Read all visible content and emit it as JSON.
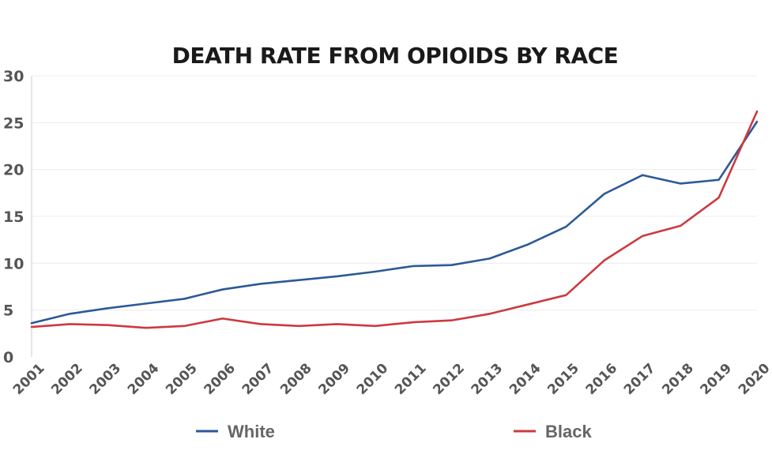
{
  "chart_data": {
    "type": "line",
    "title": "DEATH RATE FROM OPIOIDS BY RACE",
    "xlabel": "",
    "ylabel": "",
    "ylim": [
      0,
      30
    ],
    "yticks": [
      0,
      5,
      10,
      15,
      20,
      25,
      30
    ],
    "grid": true,
    "legend_position": "bottom",
    "x": [
      "2001",
      "2002",
      "2003",
      "2004",
      "2005",
      "2006",
      "2007",
      "2008",
      "2009",
      "2010",
      "2011",
      "2012",
      "2013",
      "2014",
      "2015",
      "2016",
      "2017",
      "2018",
      "2019",
      "2020"
    ],
    "series": [
      {
        "name": "White",
        "color": "#2c5a96",
        "values": [
          3.6,
          4.6,
          5.2,
          5.7,
          6.2,
          7.2,
          7.8,
          8.2,
          8.6,
          9.1,
          9.7,
          9.8,
          10.5,
          12.0,
          13.9,
          17.4,
          19.4,
          18.5,
          18.9,
          25.1
        ]
      },
      {
        "name": "Black",
        "color": "#cc3a3f",
        "values": [
          3.2,
          3.5,
          3.4,
          3.1,
          3.3,
          4.1,
          3.5,
          3.3,
          3.5,
          3.3,
          3.7,
          3.9,
          4.6,
          5.6,
          6.6,
          10.3,
          12.9,
          14.0,
          17.0,
          26.2
        ]
      }
    ]
  }
}
